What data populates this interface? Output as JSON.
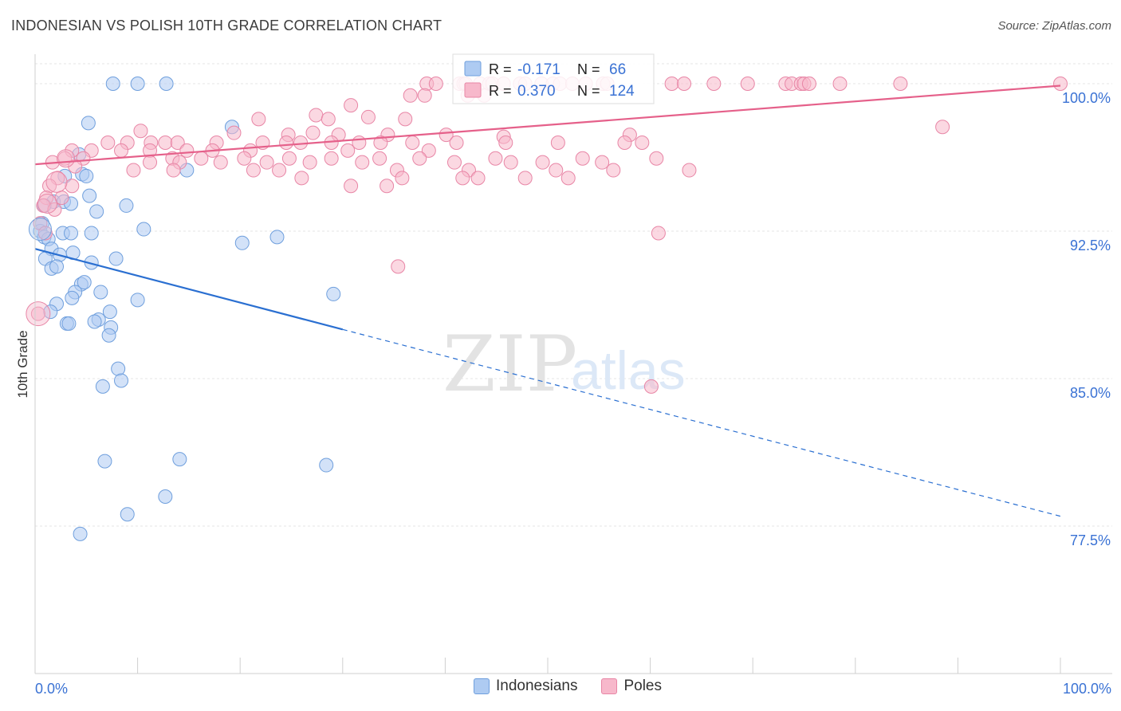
{
  "header": {
    "title": "INDONESIAN VS POLISH 10TH GRADE CORRELATION CHART",
    "source": "Source: ZipAtlas.com"
  },
  "watermark": {
    "zip": "ZIP",
    "atlas": "atlas"
  },
  "chart_data": {
    "type": "scatter",
    "ylabel": "10th Grade",
    "xlim": [
      0,
      100
    ],
    "ylim": [
      70,
      101.5
    ],
    "x_tick_labels": {
      "left": "0.0%",
      "right": "100.0%"
    },
    "y_ticks": [
      {
        "value": 100.0,
        "label": "100.0%"
      },
      {
        "value": 92.5,
        "label": "92.5%"
      },
      {
        "value": 85.0,
        "label": "85.0%"
      },
      {
        "value": 77.5,
        "label": "77.5%"
      }
    ],
    "grid": true,
    "legend_position": "top-center",
    "stats": [
      {
        "r_label": "R =",
        "r_value": "-0.171",
        "n_label": "N =",
        "n_value": "66",
        "color": "#aecbf2",
        "text_color": "#3a72d4"
      },
      {
        "r_label": "R =",
        "r_value": "0.370",
        "n_label": "N =",
        "n_value": "124",
        "color": "#f7b8cb",
        "text_color": "#3a72d4"
      }
    ],
    "series": [
      {
        "name": "Indonesians",
        "color": "#aecbf2",
        "stroke": "#6f9fdd",
        "trend": {
          "x0": 0,
          "y0": 91.6,
          "x1": 30,
          "y1": 87.5,
          "x_dash_end": 100,
          "y_dash_end": 78.0,
          "color": "#2a6fd1"
        },
        "points": [
          [
            7.6,
            100
          ],
          [
            10,
            100
          ],
          [
            12.8,
            100
          ],
          [
            5.2,
            98
          ],
          [
            19.2,
            97.8
          ],
          [
            4.3,
            96.4
          ],
          [
            14.8,
            95.6
          ],
          [
            2.9,
            95.3
          ],
          [
            4.6,
            95.4
          ],
          [
            5,
            95.3
          ],
          [
            5.3,
            94.3
          ],
          [
            1.8,
            94
          ],
          [
            2.8,
            94
          ],
          [
            3.5,
            93.9
          ],
          [
            0.9,
            93.8
          ],
          [
            8.9,
            93.8
          ],
          [
            6,
            93.5
          ],
          [
            0.7,
            92.9
          ],
          [
            0.5,
            92.5
          ],
          [
            10.6,
            92.6
          ],
          [
            2.7,
            92.4
          ],
          [
            3.5,
            92.4
          ],
          [
            5.5,
            92.4
          ],
          [
            0.9,
            92.2
          ],
          [
            1.3,
            92.1
          ],
          [
            23.6,
            92.2
          ],
          [
            20.2,
            91.9
          ],
          [
            1.6,
            91.6
          ],
          [
            2.4,
            91.3
          ],
          [
            3.7,
            91.4
          ],
          [
            1,
            91.1
          ],
          [
            7.9,
            91.1
          ],
          [
            5.5,
            90.9
          ],
          [
            1.6,
            90.6
          ],
          [
            2.1,
            90.7
          ],
          [
            4.5,
            89.8
          ],
          [
            4.8,
            89.9
          ],
          [
            3.9,
            89.4
          ],
          [
            6.4,
            89.4
          ],
          [
            29.1,
            89.3
          ],
          [
            3.6,
            89.1
          ],
          [
            10,
            89
          ],
          [
            2.1,
            88.8
          ],
          [
            1.5,
            88.4
          ],
          [
            7.3,
            88.4
          ],
          [
            6.2,
            88
          ],
          [
            5.8,
            87.9
          ],
          [
            3.1,
            87.8
          ],
          [
            3.3,
            87.8
          ],
          [
            7.4,
            87.6
          ],
          [
            7.2,
            87.2
          ],
          [
            8.1,
            85.5
          ],
          [
            8.4,
            84.9
          ],
          [
            6.6,
            84.6
          ],
          [
            6.8,
            80.8
          ],
          [
            14.1,
            80.9
          ],
          [
            28.4,
            80.6
          ],
          [
            12.7,
            79
          ],
          [
            9,
            78.1
          ],
          [
            4.4,
            77.1
          ]
        ]
      },
      {
        "name": "Poles",
        "color": "#f7b8cb",
        "stroke": "#e886a6",
        "trend": {
          "x0": 0,
          "y0": 95.9,
          "x1": 100,
          "y1": 99.9,
          "color": "#e5608a"
        },
        "points": [
          [
            38.2,
            100
          ],
          [
            39.1,
            100
          ],
          [
            41.4,
            100
          ],
          [
            41.8,
            100
          ],
          [
            42,
            100
          ],
          [
            43.4,
            100
          ],
          [
            44.3,
            100
          ],
          [
            44.6,
            100
          ],
          [
            45.7,
            100
          ],
          [
            47.3,
            100
          ],
          [
            47.8,
            100
          ],
          [
            49.4,
            100
          ],
          [
            50.5,
            100
          ],
          [
            51.2,
            100
          ],
          [
            52.4,
            100
          ],
          [
            53.7,
            100
          ],
          [
            55.4,
            100
          ],
          [
            55.8,
            100
          ],
          [
            62.1,
            100
          ],
          [
            63.3,
            100
          ],
          [
            66.2,
            100
          ],
          [
            69.5,
            100
          ],
          [
            73.2,
            100
          ],
          [
            73.8,
            100
          ],
          [
            74.7,
            100
          ],
          [
            75,
            100
          ],
          [
            75.5,
            100
          ],
          [
            78.5,
            100
          ],
          [
            84.4,
            100
          ],
          [
            100,
            100
          ],
          [
            36.6,
            99.4
          ],
          [
            38,
            99.4
          ],
          [
            42.2,
            99.4
          ],
          [
            43.8,
            99.4
          ],
          [
            30.8,
            98.9
          ],
          [
            27.4,
            98.4
          ],
          [
            28.6,
            98.2
          ],
          [
            32.5,
            98.3
          ],
          [
            36.1,
            98.2
          ],
          [
            21.8,
            98.2
          ],
          [
            10.3,
            97.6
          ],
          [
            19.4,
            97.5
          ],
          [
            24.7,
            97.4
          ],
          [
            27.1,
            97.5
          ],
          [
            29.6,
            97.4
          ],
          [
            34.4,
            97.4
          ],
          [
            40.1,
            97.4
          ],
          [
            45.7,
            97.3
          ],
          [
            58,
            97.4
          ],
          [
            88.5,
            97.8
          ],
          [
            7.1,
            97
          ],
          [
            9,
            97
          ],
          [
            11.3,
            97
          ],
          [
            12.7,
            97
          ],
          [
            13.9,
            97
          ],
          [
            17.7,
            97
          ],
          [
            22.2,
            97
          ],
          [
            24.5,
            97
          ],
          [
            25.9,
            97
          ],
          [
            28.9,
            97
          ],
          [
            31.6,
            97
          ],
          [
            33.7,
            97
          ],
          [
            36.8,
            97
          ],
          [
            41.1,
            97
          ],
          [
            45.9,
            97
          ],
          [
            51,
            97
          ],
          [
            57.5,
            97
          ],
          [
            59.2,
            97
          ],
          [
            3.6,
            96.6
          ],
          [
            5.5,
            96.6
          ],
          [
            8.4,
            96.6
          ],
          [
            11.2,
            96.6
          ],
          [
            14.8,
            96.6
          ],
          [
            17.3,
            96.6
          ],
          [
            21,
            96.6
          ],
          [
            30.5,
            96.6
          ],
          [
            38.4,
            96.6
          ],
          [
            2.9,
            96.2
          ],
          [
            4.7,
            96.2
          ],
          [
            13.4,
            96.2
          ],
          [
            16.2,
            96.2
          ],
          [
            20.4,
            96.2
          ],
          [
            24.8,
            96.2
          ],
          [
            28.9,
            96.2
          ],
          [
            33.6,
            96.2
          ],
          [
            37.5,
            96.2
          ],
          [
            44.9,
            96.2
          ],
          [
            53.4,
            96.2
          ],
          [
            60.6,
            96.2
          ],
          [
            1.7,
            96
          ],
          [
            11.2,
            96
          ],
          [
            14.1,
            96
          ],
          [
            18.1,
            96
          ],
          [
            22.6,
            96
          ],
          [
            26.8,
            96
          ],
          [
            31.9,
            96
          ],
          [
            40.9,
            96
          ],
          [
            46.4,
            96
          ],
          [
            49.5,
            96
          ],
          [
            55.3,
            96
          ],
          [
            3.9,
            95.8
          ],
          [
            9.6,
            95.6
          ],
          [
            13.5,
            95.6
          ],
          [
            21.3,
            95.6
          ],
          [
            23.8,
            95.6
          ],
          [
            35.3,
            95.6
          ],
          [
            42.3,
            95.6
          ],
          [
            50.8,
            95.6
          ],
          [
            56.4,
            95.6
          ],
          [
            63.8,
            95.6
          ],
          [
            2.2,
            95.2
          ],
          [
            26,
            95.2
          ],
          [
            35.8,
            95.2
          ],
          [
            41.7,
            95.2
          ],
          [
            43.2,
            95.2
          ],
          [
            47.8,
            95.2
          ],
          [
            52,
            95.2
          ],
          [
            1.4,
            94.8
          ],
          [
            3.6,
            94.8
          ],
          [
            30.8,
            94.8
          ],
          [
            34.3,
            94.8
          ],
          [
            1.1,
            94.2
          ],
          [
            2.6,
            94.2
          ],
          [
            0.8,
            93.8
          ],
          [
            1.9,
            93.6
          ],
          [
            0.5,
            92.9
          ],
          [
            1,
            92.4
          ],
          [
            0.3,
            88.3
          ],
          [
            60.8,
            92.4
          ],
          [
            35.4,
            90.7
          ],
          [
            60.1,
            84.6
          ]
        ]
      }
    ]
  }
}
